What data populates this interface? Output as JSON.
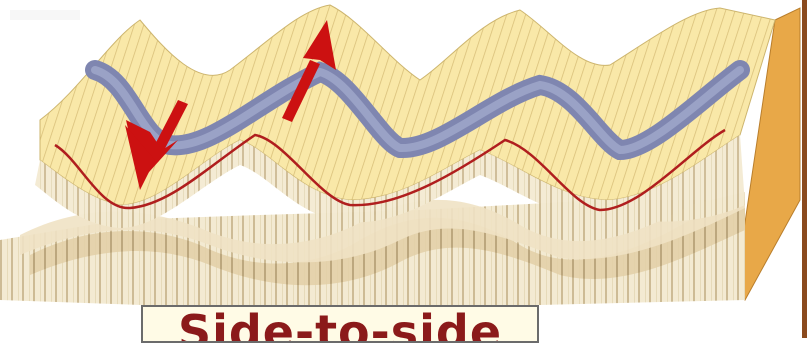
{
  "caption": {
    "text": "Side-to-side"
  },
  "colors": {
    "surface": "#f9e8a8",
    "surface_stripe": "#d9c07a",
    "layer_light": "#f3ead2",
    "layer_tan": "#e2cfa6",
    "layer_shadow": "#c9b48a",
    "wave_band": "#7f86b0",
    "wave_band_inner": "#9aa2c6",
    "trace_line": "#b01e1e",
    "arrow": "#cc1111",
    "edge": "#8a4a1e",
    "caption_text": "#8b1a1a",
    "caption_bg": "#fffbe6"
  },
  "icons": [
    "down-arrow-icon",
    "up-arrow-icon"
  ]
}
